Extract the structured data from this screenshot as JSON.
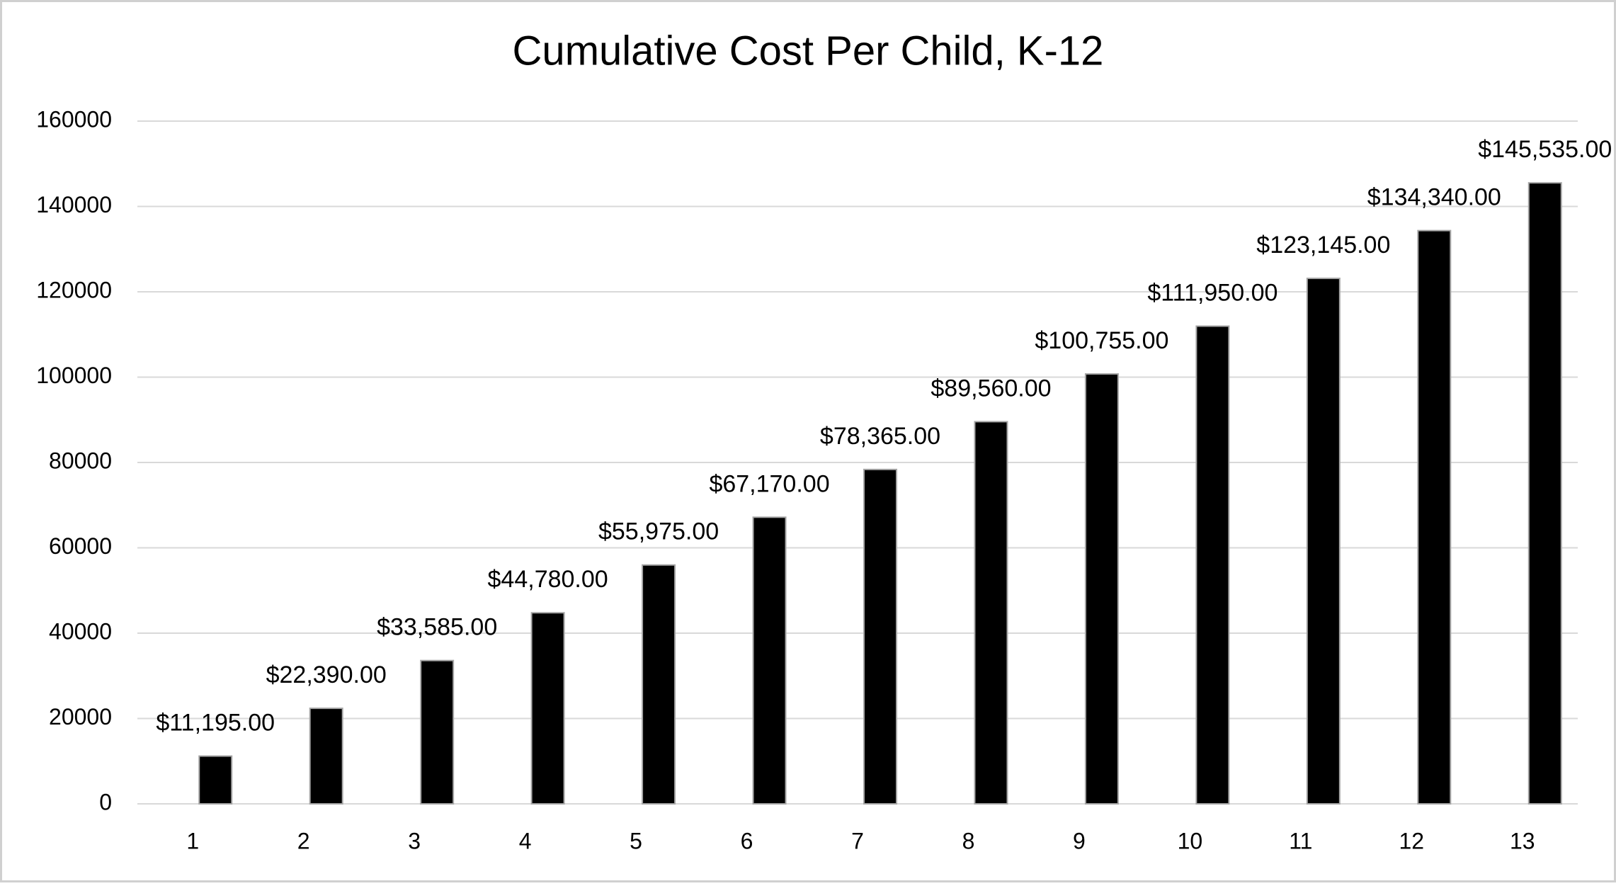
{
  "chart_data": {
    "type": "bar",
    "title": "Cumulative Cost Per Child, K-12",
    "categories": [
      "1",
      "2",
      "3",
      "4",
      "5",
      "6",
      "7",
      "8",
      "9",
      "10",
      "11",
      "12",
      "13"
    ],
    "values": [
      11195,
      22390,
      33585,
      44780,
      55975,
      67170,
      78365,
      89560,
      100755,
      111950,
      123145,
      134340,
      145535
    ],
    "value_labels": [
      "$11,195.00",
      "$22,390.00",
      "$33,585.00",
      "$44,780.00",
      "$55,975.00",
      "$67,170.00",
      "$78,365.00",
      "$89,560.00",
      "$100,755.00",
      "$111,950.00",
      "$123,145.00",
      "$134,340.00",
      "$145,535.00"
    ],
    "color": "#000000",
    "ylim": [
      0,
      160000
    ],
    "yticks": [
      0,
      20000,
      40000,
      60000,
      80000,
      100000,
      120000,
      140000,
      160000
    ],
    "grid": true
  }
}
